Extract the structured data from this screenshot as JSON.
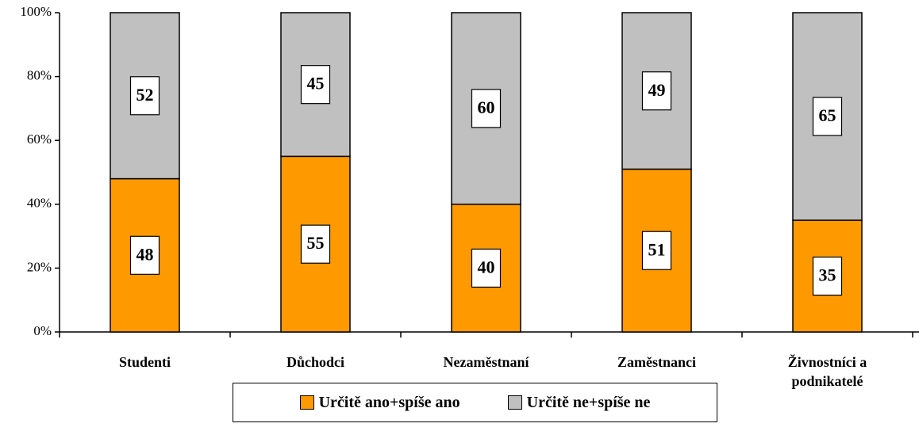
{
  "chart_data": {
    "type": "stacked-bar",
    "categories": [
      "Studenti",
      "Důchodci",
      "Nezaměstnaní",
      "Zaměstnanci",
      "Živnostníci a podnikatelé"
    ],
    "series": [
      {
        "name": "Určitě ano+spíše ano",
        "color": "#FF9900",
        "values": [
          48,
          55,
          40,
          51,
          35
        ]
      },
      {
        "name": "Určitě ne+spíše ne",
        "color": "#C0C0C0",
        "values": [
          52,
          45,
          60,
          49,
          65
        ]
      }
    ],
    "ylim": [
      0,
      100
    ],
    "yticks": [
      {
        "value": 0,
        "label": "0%"
      },
      {
        "value": 20,
        "label": "20%"
      },
      {
        "value": 40,
        "label": "40%"
      },
      {
        "value": 60,
        "label": "60%"
      },
      {
        "value": 80,
        "label": "80%"
      },
      {
        "value": 100,
        "label": "100%"
      }
    ]
  }
}
